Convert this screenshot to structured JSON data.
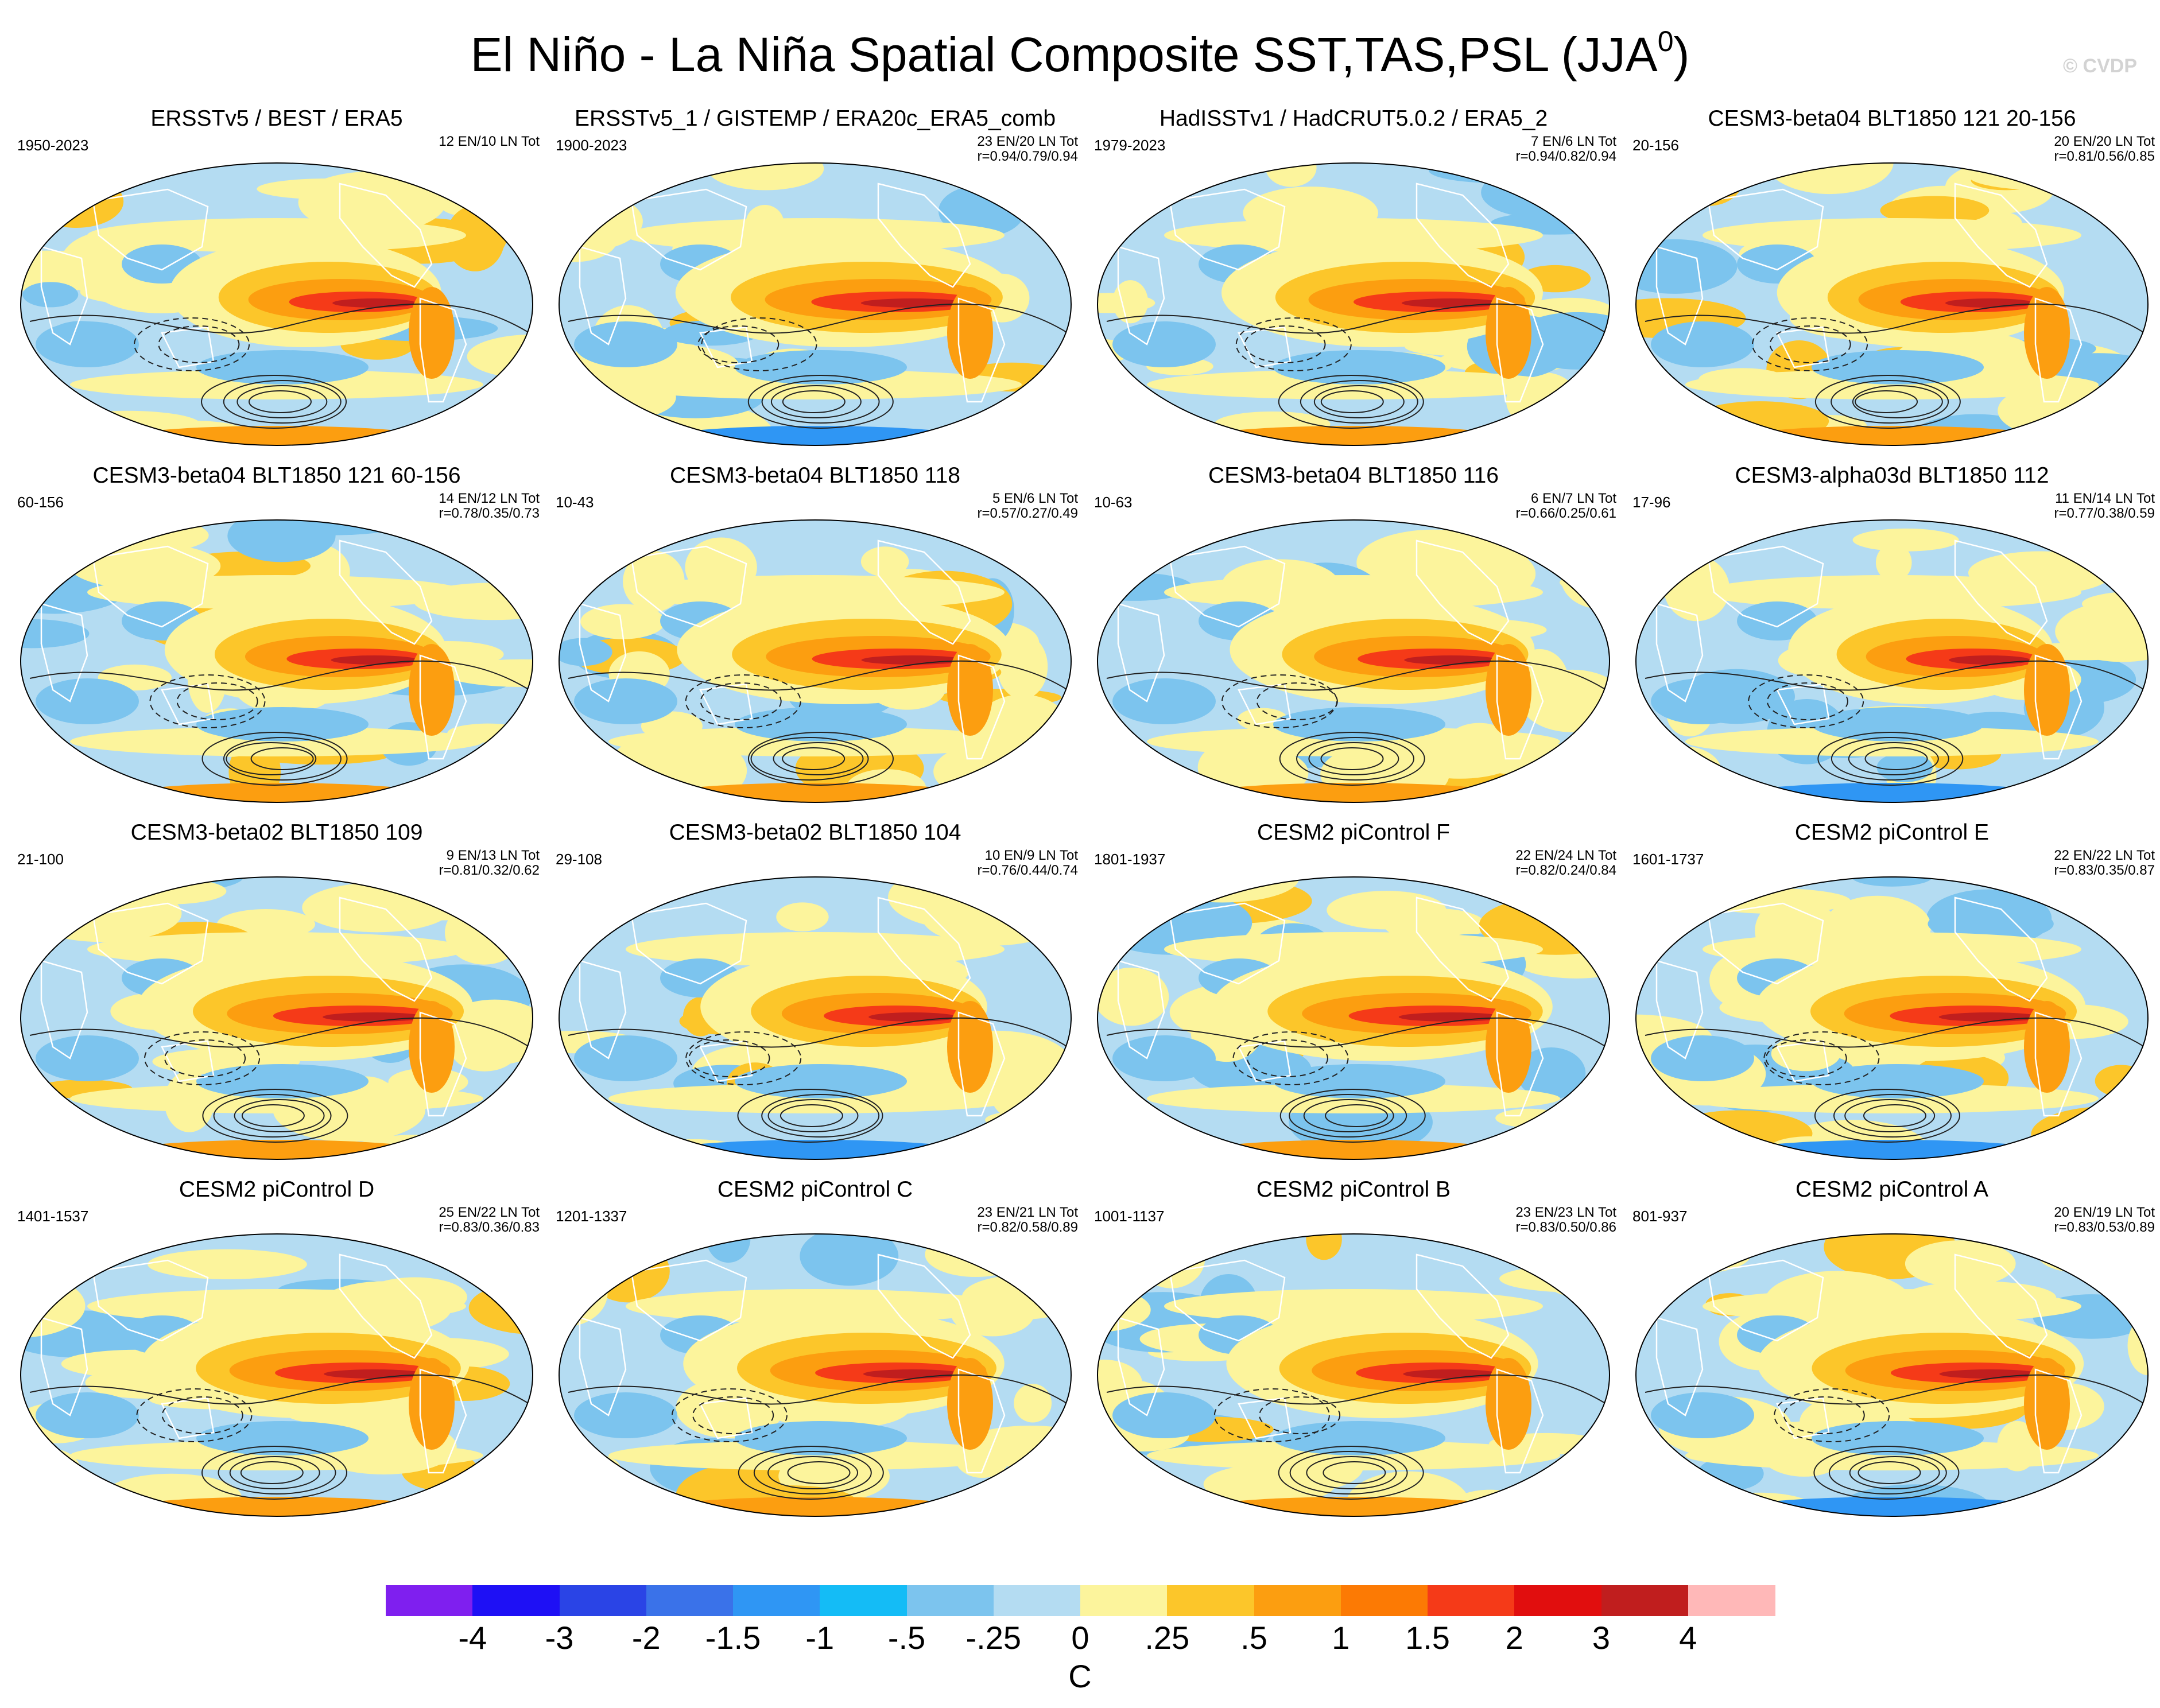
{
  "title": "El Niño - La Niña Spatial Composite SST,TAS,PSL (JJA",
  "title_superscript": "0",
  "title_close": ")",
  "watermark": "© CVDP",
  "panels": [
    {
      "title": "ERSSTv5 / BEST / ERA5",
      "years": "1950-2023",
      "counts": "12 EN/10 LN Tot",
      "r": ""
    },
    {
      "title": "ERSSTv5_1 / GISTEMP / ERA20c_ERA5_comb",
      "years": "1900-2023",
      "counts": "23 EN/20 LN Tot",
      "r": "r=0.94/0.79/0.94"
    },
    {
      "title": "HadISSTv1 / HadCRUT5.0.2 / ERA5_2",
      "years": "1979-2023",
      "counts": "7 EN/6 LN Tot",
      "r": "r=0.94/0.82/0.94"
    },
    {
      "title": "CESM3-beta04 BLT1850 121 20-156",
      "years": "20-156",
      "counts": "20 EN/20 LN Tot",
      "r": "r=0.81/0.56/0.85"
    },
    {
      "title": "CESM3-beta04 BLT1850 121 60-156",
      "years": "60-156",
      "counts": "14 EN/12 LN Tot",
      "r": "r=0.78/0.35/0.73"
    },
    {
      "title": "CESM3-beta04 BLT1850 118",
      "years": "10-43",
      "counts": "5 EN/6 LN Tot",
      "r": "r=0.57/0.27/0.49"
    },
    {
      "title": "CESM3-beta04 BLT1850 116",
      "years": "10-63",
      "counts": "6 EN/7 LN Tot",
      "r": "r=0.66/0.25/0.61"
    },
    {
      "title": "CESM3-alpha03d BLT1850 112",
      "years": "17-96",
      "counts": "11 EN/14 LN Tot",
      "r": "r=0.77/0.38/0.59"
    },
    {
      "title": "CESM3-beta02 BLT1850 109",
      "years": "21-100",
      "counts": "9 EN/13 LN Tot",
      "r": "r=0.81/0.32/0.62"
    },
    {
      "title": "CESM3-beta02 BLT1850 104",
      "years": "29-108",
      "counts": "10 EN/9 LN Tot",
      "r": "r=0.76/0.44/0.74"
    },
    {
      "title": "CESM2 piControl F",
      "years": "1801-1937",
      "counts": "22 EN/24 LN Tot",
      "r": "r=0.82/0.24/0.84"
    },
    {
      "title": "CESM2 piControl E",
      "years": "1601-1737",
      "counts": "22 EN/22 LN Tot",
      "r": "r=0.83/0.35/0.87"
    },
    {
      "title": "CESM2 piControl D",
      "years": "1401-1537",
      "counts": "25 EN/22 LN Tot",
      "r": "r=0.83/0.36/0.83"
    },
    {
      "title": "CESM2 piControl C",
      "years": "1201-1337",
      "counts": "23 EN/21 LN Tot",
      "r": "r=0.82/0.58/0.89"
    },
    {
      "title": "CESM2 piControl B",
      "years": "1001-1137",
      "counts": "23 EN/23 LN Tot",
      "r": "r=0.83/0.50/0.86"
    },
    {
      "title": "CESM2 piControl A",
      "years": "801-937",
      "counts": "20 EN/19 LN Tot",
      "r": "r=0.83/0.53/0.89"
    }
  ],
  "colorbar": {
    "colors": [
      "#7f1fef",
      "#1e10f5",
      "#2a44e6",
      "#3a72e9",
      "#2f96f4",
      "#14bcf6",
      "#7cc4ee",
      "#b4dcf2",
      "#fcf49c",
      "#fcc62a",
      "#fc9e10",
      "#fc7a04",
      "#f53a18",
      "#e10e0e",
      "#c01e1e",
      "#ffb8b8"
    ],
    "labels": [
      "-4",
      "-3",
      "-2",
      "-1.5",
      "-1",
      "-.5",
      "-.25",
      "0",
      ".25",
      ".5",
      "1",
      "1.5",
      "2",
      "3",
      "4"
    ],
    "unit": "C"
  }
}
